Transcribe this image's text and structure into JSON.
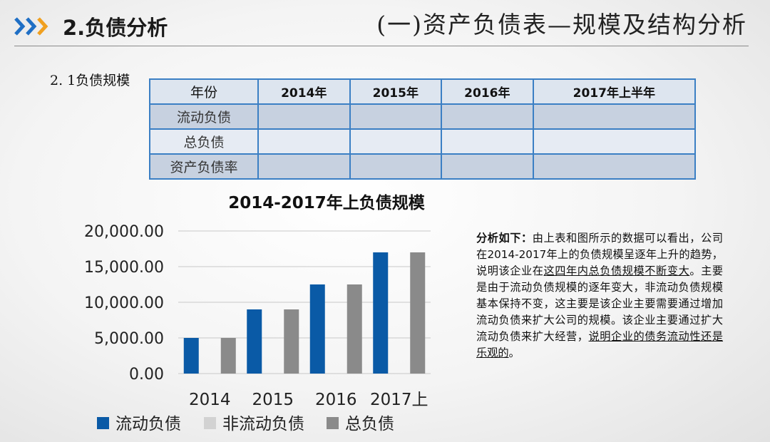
{
  "header": {
    "section_title": "2.负债分析",
    "slide_heading": "(一)资产负债表—规模及结构分析",
    "arrow_color": "#1f6fc5"
  },
  "subsection": "2. 1负债规模",
  "table": {
    "columns": [
      "年份",
      "2014年",
      "2015年",
      "2016年",
      "2017年上半年"
    ],
    "rows": [
      {
        "label": "流动负债",
        "cells": [
          "",
          "",
          "",
          ""
        ]
      },
      {
        "label": "总负债",
        "cells": [
          "",
          "",
          "",
          ""
        ]
      },
      {
        "label": "资产负债率",
        "cells": [
          "",
          "",
          "",
          ""
        ]
      }
    ]
  },
  "chart_data": {
    "type": "bar",
    "title": "2014-2017年上负债规模",
    "categories": [
      "2014",
      "2015",
      "2016",
      "2017上"
    ],
    "series": [
      {
        "name": "流动负债",
        "color": "#0a5aa6",
        "values": [
          5000,
          9000,
          12500,
          17000
        ]
      },
      {
        "name": "非流动负债",
        "color": "#d2d2d2",
        "values": [
          0,
          0,
          0,
          0
        ]
      },
      {
        "name": "总负债",
        "color": "#8a8a8a",
        "values": [
          5000,
          9000,
          12500,
          17000
        ]
      }
    ],
    "y_ticks": [
      "0.00",
      "5,000.00",
      "10,000.00",
      "15,000.00",
      "20,000.00"
    ],
    "ylim": [
      0,
      20000
    ],
    "grid": true,
    "legend_position": "bottom"
  },
  "analysis": {
    "lead": "分析如下：",
    "part1": "由上表和图所示的数据可以看出，公司在2014-2017年上的负债规模呈逐年上升的趋势，说明该企业在",
    "part2": "这四年内总负债规模不断变大",
    "part3": "。主要是由于流动负债规模的逐年变大，非流动负债规模基本保持不变，这主要是该企业主要需要通过增加流动负债来扩大公司的规模。该企业主要通过扩大流动负债来扩大经营，",
    "part4": "说明企业的债务流动性还是乐观的",
    "part5": "。"
  }
}
